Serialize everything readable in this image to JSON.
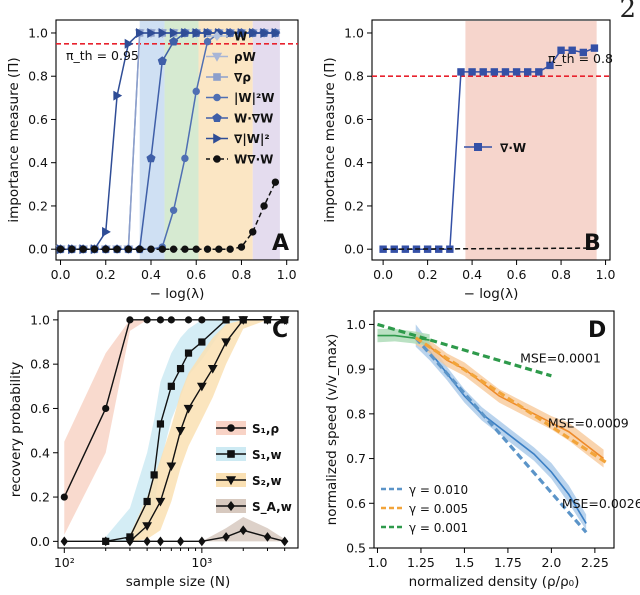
{
  "page_number": "2",
  "chart_data": [
    {
      "id": "A",
      "type": "line",
      "panel_label": "A",
      "xlabel": "− log(λ)",
      "ylabel": "importance measure (Π)",
      "xlim": [
        -0.02,
        1.05
      ],
      "ylim": [
        -0.05,
        1.06
      ],
      "xticks": [
        0.0,
        0.2,
        0.4,
        0.6,
        0.8,
        1.0
      ],
      "xtick_labels": [
        "0.0",
        "0.2",
        "0.4",
        "0.6",
        "0.8",
        "1.0"
      ],
      "yticks": [
        0.0,
        0.2,
        0.4,
        0.6,
        0.8,
        1.0
      ],
      "ytick_labels": [
        "0.0",
        "0.2",
        "0.4",
        "0.6",
        "0.8",
        "1.0"
      ],
      "threshold": {
        "value": 0.95,
        "label": "π_th = 0.95",
        "color": "#e8222d"
      },
      "bands": [
        {
          "x0": 0.35,
          "x1": 0.46,
          "color": "#cfe0f3"
        },
        {
          "x0": 0.46,
          "x1": 0.61,
          "color": "#d6ead1"
        },
        {
          "x0": 0.61,
          "x1": 0.85,
          "color": "#fbe6c4"
        },
        {
          "x0": 0.85,
          "x1": 0.97,
          "color": "#e4dcee"
        }
      ],
      "legend_position": "right",
      "series": [
        {
          "name": "W",
          "marker": "diamond",
          "color": "#b3c3de",
          "dash": false,
          "x": [
            0.0,
            0.05,
            0.1,
            0.15,
            0.2,
            0.25,
            0.3,
            0.35,
            0.4,
            0.45,
            0.5,
            0.55,
            0.6,
            0.65,
            0.7,
            0.75,
            0.8,
            0.85,
            0.9,
            0.95
          ],
          "y": [
            0,
            0,
            0,
            0,
            0,
            0,
            0,
            1,
            1,
            1,
            1,
            1,
            1,
            1,
            1,
            1,
            1,
            1,
            1,
            1
          ]
        },
        {
          "name": "ρW",
          "marker": "triangle-down",
          "color": "#a8b5d6",
          "dash": false,
          "x": [
            0.0,
            0.05,
            0.1,
            0.15,
            0.2,
            0.25,
            0.3,
            0.35,
            0.4,
            0.45,
            0.5,
            0.55,
            0.6,
            0.65,
            0.7,
            0.75,
            0.8,
            0.85,
            0.9,
            0.95
          ],
          "y": [
            0,
            0,
            0,
            0,
            0,
            0,
            0,
            1,
            1,
            1,
            1,
            1,
            1,
            1,
            1,
            1,
            1,
            1,
            1,
            1
          ]
        },
        {
          "name": "∇ρ",
          "marker": "square",
          "color": "#8c9fcb",
          "dash": false,
          "x": [
            0.0,
            0.05,
            0.1,
            0.15,
            0.2,
            0.25,
            0.3,
            0.35,
            0.4,
            0.45,
            0.5,
            0.55,
            0.6,
            0.65,
            0.7,
            0.75,
            0.8,
            0.85,
            0.9,
            0.95
          ],
          "y": [
            0,
            0,
            0,
            0,
            0,
            0,
            0,
            1,
            1,
            1,
            1,
            1,
            1,
            1,
            1,
            1,
            1,
            1,
            1,
            1
          ]
        },
        {
          "name": "|W|²W",
          "marker": "circle",
          "color": "#4f6fb3",
          "dash": false,
          "x": [
            0.0,
            0.05,
            0.1,
            0.15,
            0.2,
            0.25,
            0.3,
            0.35,
            0.4,
            0.45,
            0.5,
            0.55,
            0.6,
            0.65,
            0.7,
            0.75,
            0.8,
            0.85,
            0.9,
            0.95
          ],
          "y": [
            0,
            0,
            0,
            0,
            0,
            0,
            0,
            0,
            0,
            0.01,
            0.18,
            0.42,
            0.73,
            0.96,
            1,
            1,
            1,
            1,
            1,
            1
          ]
        },
        {
          "name": "W·∇W",
          "marker": "pentagon",
          "color": "#3f5fa8",
          "dash": false,
          "x": [
            0.0,
            0.05,
            0.1,
            0.15,
            0.2,
            0.25,
            0.3,
            0.35,
            0.4,
            0.45,
            0.5,
            0.55,
            0.6,
            0.65,
            0.7,
            0.75,
            0.8,
            0.85,
            0.9,
            0.95
          ],
          "y": [
            0,
            0,
            0,
            0,
            0,
            0,
            0,
            0,
            0.42,
            0.87,
            0.96,
            1,
            1,
            1,
            1,
            1,
            1,
            1,
            1,
            1
          ]
        },
        {
          "name": "∇|W|²",
          "marker": "triangle-right",
          "color": "#2f4d96",
          "dash": false,
          "x": [
            0.0,
            0.05,
            0.1,
            0.15,
            0.2,
            0.25,
            0.3,
            0.35,
            0.4,
            0.45,
            0.5,
            0.55,
            0.6,
            0.65,
            0.7,
            0.75,
            0.8,
            0.85,
            0.9,
            0.95
          ],
          "y": [
            0,
            0,
            0,
            0,
            0.08,
            0.71,
            0.95,
            1,
            1,
            1,
            1,
            1,
            1,
            1,
            1,
            1,
            1,
            1,
            1,
            1
          ]
        },
        {
          "name": "W∇·W",
          "marker": "circle",
          "color": "#111111",
          "dash": true,
          "x": [
            0.0,
            0.05,
            0.1,
            0.15,
            0.2,
            0.25,
            0.3,
            0.35,
            0.4,
            0.45,
            0.5,
            0.55,
            0.6,
            0.65,
            0.7,
            0.75,
            0.8,
            0.85,
            0.9,
            0.95
          ],
          "y": [
            0,
            0,
            0,
            0,
            0,
            0,
            0,
            0,
            0,
            0,
            0,
            0,
            0,
            0,
            0,
            0,
            0.01,
            0.08,
            0.2,
            0.31
          ]
        }
      ]
    },
    {
      "id": "B",
      "type": "line",
      "panel_label": "B",
      "xlabel": "− log(λ)",
      "ylabel": "importance measure (Π)",
      "xlim": [
        -0.05,
        1.02
      ],
      "ylim": [
        -0.05,
        1.06
      ],
      "xticks": [
        0.0,
        0.2,
        0.4,
        0.6,
        0.8,
        1.0
      ],
      "xtick_labels": [
        "0.0",
        "0.2",
        "0.4",
        "0.6",
        "0.8",
        "1.0"
      ],
      "yticks": [
        0.0,
        0.2,
        0.4,
        0.6,
        0.8,
        1.0
      ],
      "ytick_labels": [
        "0.0",
        "0.2",
        "0.4",
        "0.6",
        "0.8",
        "1.0"
      ],
      "threshold": {
        "value": 0.8,
        "label": "π_th = 0.8",
        "color": "#e8222d"
      },
      "bands": [
        {
          "x0": 0.37,
          "x1": 0.96,
          "color": "#f6d5cc"
        }
      ],
      "legend_position": "center-left",
      "series": [
        {
          "name": "∇·W",
          "marker": "square",
          "color": "#3450a6",
          "dash": false,
          "x": [
            0.0,
            0.05,
            0.1,
            0.15,
            0.2,
            0.25,
            0.3,
            0.35,
            0.4,
            0.45,
            0.5,
            0.55,
            0.6,
            0.65,
            0.7,
            0.75,
            0.8,
            0.85,
            0.9,
            0.95
          ],
          "y": [
            0,
            0,
            0,
            0,
            0,
            0,
            0,
            0.82,
            0.82,
            0.82,
            0.82,
            0.82,
            0.82,
            0.82,
            0.82,
            0.85,
            0.92,
            0.92,
            0.91,
            0.93
          ]
        },
        {
          "name": "",
          "marker": "none",
          "color": "#111111",
          "dash": true,
          "x": [
            0.0,
            0.95
          ],
          "y": [
            0,
            0.005
          ]
        }
      ]
    },
    {
      "id": "C",
      "type": "line",
      "panel_label": "C",
      "xlabel": "sample size (N)",
      "ylabel": "recovery probability",
      "xscale": "log",
      "xlim": [
        90,
        5000
      ],
      "ylim": [
        -0.03,
        1.04
      ],
      "xticks": [
        100,
        1000
      ],
      "xtick_labels": [
        "10²",
        "10³"
      ],
      "yticks": [
        0.0,
        0.2,
        0.4,
        0.6,
        0.8,
        1.0
      ],
      "ytick_labels": [
        "0.0",
        "0.2",
        "0.4",
        "0.6",
        "0.8",
        "1.0"
      ],
      "legend_position": "right",
      "series": [
        {
          "name": "S₁,ρ",
          "marker": "circle",
          "color": "#111111",
          "band_color": "#f8d3c6",
          "x": [
            100,
            200,
            300,
            400,
            500,
            600,
            800,
            1000,
            1500,
            2000,
            3000,
            4000
          ],
          "y": [
            0.2,
            0.6,
            1,
            1,
            1,
            1,
            1,
            1,
            1,
            1,
            1,
            1
          ],
          "lower": [
            0.03,
            0.4,
            0.95,
            1,
            1,
            1,
            1,
            1,
            1,
            1,
            1,
            1
          ],
          "upper": [
            0.45,
            0.85,
            1,
            1,
            1,
            1,
            1,
            1,
            1,
            1,
            1,
            1
          ]
        },
        {
          "name": "S₁,w",
          "marker": "square",
          "color": "#111111",
          "band_color": "#cdeaf3",
          "x": [
            200,
            300,
            400,
            450,
            500,
            600,
            700,
            800,
            1000,
            1500,
            2000,
            3000,
            4000
          ],
          "y": [
            0,
            0.02,
            0.18,
            0.3,
            0.53,
            0.7,
            0.78,
            0.85,
            0.9,
            1,
            1,
            1,
            1
          ],
          "lower": [
            0,
            0,
            0.05,
            0.15,
            0.35,
            0.55,
            0.65,
            0.75,
            0.82,
            0.98,
            1,
            1,
            1
          ],
          "upper": [
            0.02,
            0.15,
            0.4,
            0.55,
            0.72,
            0.85,
            0.92,
            0.96,
            1,
            1,
            1,
            1,
            1
          ]
        },
        {
          "name": "S₂,w",
          "marker": "triangle-down",
          "color": "#111111",
          "band_color": "#fae0b3",
          "x": [
            300,
            400,
            500,
            600,
            700,
            800,
            1000,
            1200,
            1500,
            2000,
            3000,
            4000
          ],
          "y": [
            0,
            0.07,
            0.18,
            0.34,
            0.5,
            0.6,
            0.7,
            0.78,
            0.9,
            1,
            1,
            1
          ],
          "lower": [
            0,
            0.01,
            0.05,
            0.18,
            0.33,
            0.43,
            0.55,
            0.65,
            0.8,
            0.96,
            1,
            1
          ],
          "upper": [
            0.03,
            0.2,
            0.37,
            0.52,
            0.67,
            0.76,
            0.85,
            0.92,
            0.98,
            1,
            1,
            1
          ]
        },
        {
          "name": "S_A,w",
          "marker": "diamond",
          "color": "#111111",
          "band_color": "#d7c9bf",
          "x": [
            100,
            200,
            300,
            400,
            500,
            700,
            1000,
            1500,
            2000,
            3000,
            4000
          ],
          "y": [
            0,
            0,
            0,
            0,
            0,
            0,
            0,
            0.02,
            0.05,
            0.02,
            0
          ],
          "lower": [
            0,
            0,
            0,
            0,
            0,
            0,
            0,
            0,
            0,
            0,
            0
          ],
          "upper": [
            0,
            0,
            0,
            0,
            0,
            0,
            0,
            0.06,
            0.11,
            0.06,
            0.01
          ]
        }
      ]
    },
    {
      "id": "D",
      "type": "line",
      "panel_label": "D",
      "xlabel": "normalized density (ρ/ρ₀)",
      "ylabel": "normalized speed (v/v_max)",
      "xlim": [
        0.98,
        2.36
      ],
      "ylim": [
        0.5,
        1.03
      ],
      "xticks": [
        1.0,
        1.25,
        1.5,
        1.75,
        2.0,
        2.25
      ],
      "xtick_labels": [
        "1.0",
        "1.25",
        "1.5",
        "1.75",
        "2.0",
        "2.25"
      ],
      "yticks": [
        0.5,
        0.6,
        0.7,
        0.8,
        0.9,
        1.0
      ],
      "ytick_labels": [
        "0.5",
        "0.6",
        "0.7",
        "0.8",
        "0.9",
        "1.0"
      ],
      "legend_position": "bottom-left",
      "annotations": [
        {
          "text": "MSE=0.0001",
          "x": 1.82,
          "y": 0.915
        },
        {
          "text": "MSE=0.0009",
          "x": 1.98,
          "y": 0.77
        },
        {
          "text": "MSE=0.0026",
          "x": 2.06,
          "y": 0.59
        }
      ],
      "series": [
        {
          "name": "γ = 0.010",
          "style": "fit-dashed",
          "color": "#5b94c8",
          "x": [
            1.22,
            2.2
          ],
          "y": [
            0.97,
            0.535
          ]
        },
        {
          "name": "γ = 0.005",
          "style": "fit-dashed",
          "color": "#f2a43a",
          "x": [
            1.22,
            2.32
          ],
          "y": [
            0.97,
            0.69
          ]
        },
        {
          "name": "γ = 0.001",
          "style": "fit-dashed",
          "color": "#2e9a4b",
          "x": [
            1.0,
            2.0
          ],
          "y": [
            1.0,
            0.885
          ]
        },
        {
          "name": "",
          "style": "data-band",
          "color": "#3b7fc4",
          "band_color": "#a7c8e8",
          "x": [
            1.22,
            1.3,
            1.4,
            1.5,
            1.6,
            1.7,
            1.8,
            1.9,
            2.0,
            2.1,
            2.2
          ],
          "y": [
            0.975,
            0.94,
            0.89,
            0.84,
            0.8,
            0.77,
            0.74,
            0.71,
            0.67,
            0.62,
            0.555
          ],
          "lower": [
            0.95,
            0.92,
            0.875,
            0.825,
            0.785,
            0.755,
            0.725,
            0.695,
            0.655,
            0.6,
            0.54
          ],
          "upper": [
            1.0,
            0.96,
            0.905,
            0.855,
            0.815,
            0.785,
            0.755,
            0.725,
            0.69,
            0.64,
            0.575
          ]
        },
        {
          "name": "",
          "style": "data-band",
          "color": "#ee8a2a",
          "band_color": "#f7c99a",
          "x": [
            1.22,
            1.3,
            1.4,
            1.5,
            1.6,
            1.7,
            1.8,
            1.9,
            2.0,
            2.1,
            2.2,
            2.3
          ],
          "y": [
            0.97,
            0.95,
            0.92,
            0.9,
            0.87,
            0.84,
            0.82,
            0.8,
            0.78,
            0.76,
            0.73,
            0.7
          ],
          "lower": [
            0.955,
            0.935,
            0.905,
            0.885,
            0.855,
            0.825,
            0.805,
            0.785,
            0.765,
            0.74,
            0.71,
            0.68
          ],
          "upper": [
            0.985,
            0.965,
            0.935,
            0.915,
            0.885,
            0.855,
            0.835,
            0.815,
            0.795,
            0.78,
            0.75,
            0.72
          ]
        },
        {
          "name": "",
          "style": "data-band",
          "color": "#2e9a4b",
          "band_color": "#a9d9b4",
          "x": [
            1.0,
            1.1,
            1.2,
            1.3
          ],
          "y": [
            0.975,
            0.975,
            0.97,
            0.965
          ],
          "lower": [
            0.96,
            0.962,
            0.958,
            0.952
          ],
          "upper": [
            0.99,
            0.99,
            0.985,
            0.978
          ]
        }
      ]
    }
  ]
}
